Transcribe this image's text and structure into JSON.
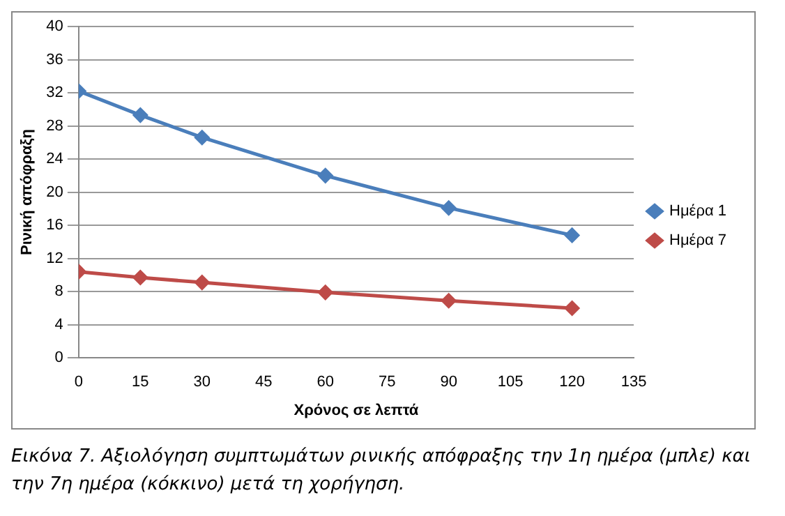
{
  "chart_data": {
    "type": "line",
    "xlabel": "Χρόνος σε λεπτά",
    "ylabel": "Ρινική απόφραξη",
    "x": [
      0,
      15,
      30,
      60,
      90,
      120
    ],
    "series": [
      {
        "name": "Ημέρα 1",
        "color": "#4a7ebb",
        "values": [
          32.2,
          29.3,
          26.6,
          22,
          18.1,
          14.8
        ]
      },
      {
        "name": "Ημέρα 7",
        "color": "#be4b48",
        "values": [
          10.4,
          9.7,
          9.1,
          7.9,
          6.9,
          6.0
        ]
      }
    ],
    "xlim": [
      0,
      135
    ],
    "xticks": [
      0,
      15,
      30,
      45,
      60,
      75,
      90,
      105,
      120,
      135
    ],
    "ylim": [
      0,
      40
    ],
    "yticks": [
      0,
      4,
      8,
      12,
      16,
      20,
      24,
      28,
      32,
      36,
      40
    ],
    "grid": "y",
    "legend": "right",
    "marker": "diamond",
    "line_style": "solid",
    "annotations": [
      "Εικόνα 7. Αξιολόγηση συμπτωμάτων ρινικής απόφραξης την 1η ημέρα (μπλε) και την 7η ημέρα (κόκκινο) μετά τη χορήγηση."
    ]
  }
}
